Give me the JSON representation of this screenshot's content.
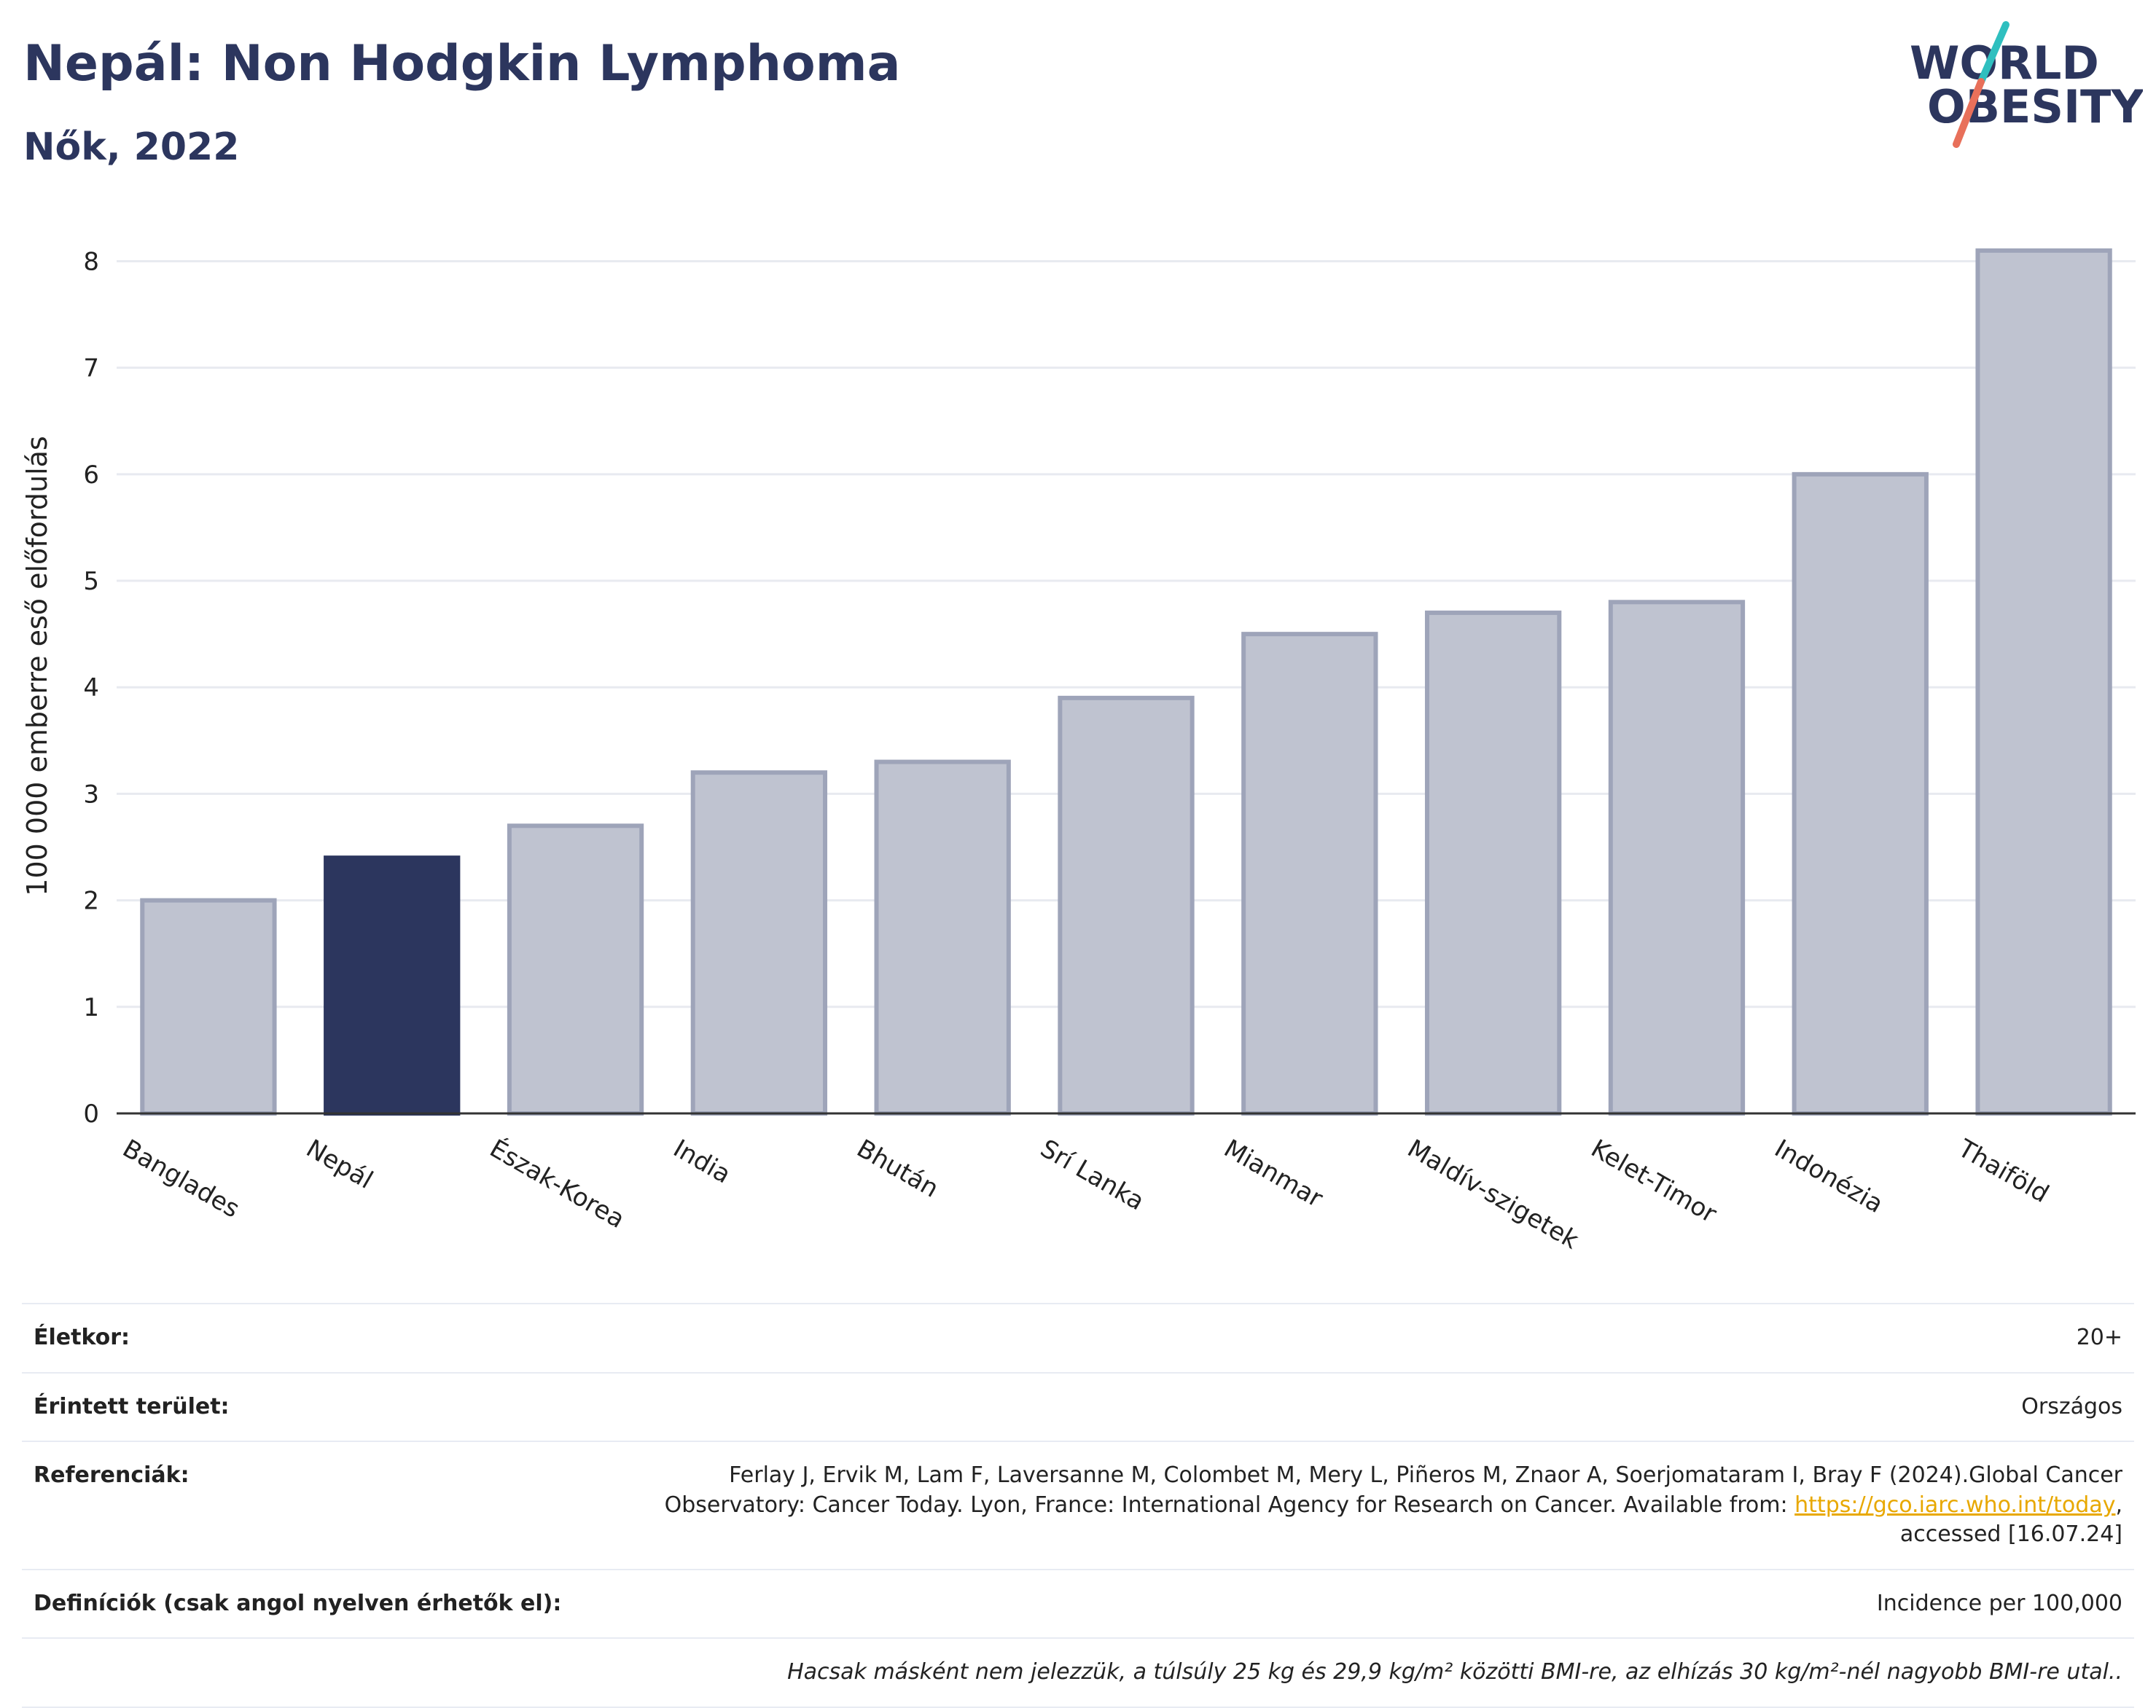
{
  "header": {
    "title": "Nepál: Non Hodgkin Lymphoma",
    "subtitle": "Nők, 2022"
  },
  "logo": {
    "line1": "WORLD",
    "line2": "OBESITY",
    "slash_colors": [
      "#2fbfbf",
      "#e8705a"
    ]
  },
  "colors": {
    "highlight": "#2c365e",
    "bar_fill": "#bfc3d0",
    "bar_stroke": "#9ea4b9",
    "grid": "#e8eaf0"
  },
  "chart_data": {
    "type": "bar",
    "title": "Nepál: Non Hodgkin Lymphoma",
    "subtitle": "Nők, 2022",
    "xlabel": "",
    "ylabel": "100 000 emberre eső előfordulás",
    "categories": [
      "Banglades",
      "Nepál",
      "Észak-Korea",
      "India",
      "Bhután",
      "Srí Lanka",
      "Mianmar",
      "Maldív-szigetek",
      "Kelet-Timor",
      "Indonézia",
      "Thaiföld"
    ],
    "values": [
      2.0,
      2.4,
      2.7,
      3.2,
      3.3,
      3.9,
      4.5,
      4.7,
      4.8,
      6.0,
      8.1
    ],
    "highlight": "Nepál",
    "yticks": [
      0,
      1,
      2,
      3,
      4,
      5,
      6,
      7,
      8
    ],
    "ylim": [
      0,
      8.4
    ],
    "grid": true,
    "legend": "none"
  },
  "info": {
    "age_label": "Életkor:",
    "age_value": "20+",
    "area_label": "Érintett terület:",
    "area_value": "Országos",
    "ref_label": "Referenciák:",
    "ref_text_1": "Ferlay J, Ervik M, Lam F, Laversanne M, Colombet M, Mery L, Piñeros M, Znaor A, Soerjomataram I, Bray F (2024).Global Cancer Observatory: Cancer Today. Lyon, France: International Agency for Research on Cancer. Available from: ",
    "ref_link": "https://gco.iarc.who.int/today",
    "ref_text_2": ", accessed [16.07.24]",
    "def_label": "Definíciók (csak angol nyelven érhetők el):",
    "def_value": "Incidence per 100,000",
    "note": "Hacsak másként nem jelezzük, a túlsúly 25 kg és 29,9 kg/m² közötti BMI-re, az elhízás 30 kg/m²-nél nagyobb BMI-re utal.."
  }
}
